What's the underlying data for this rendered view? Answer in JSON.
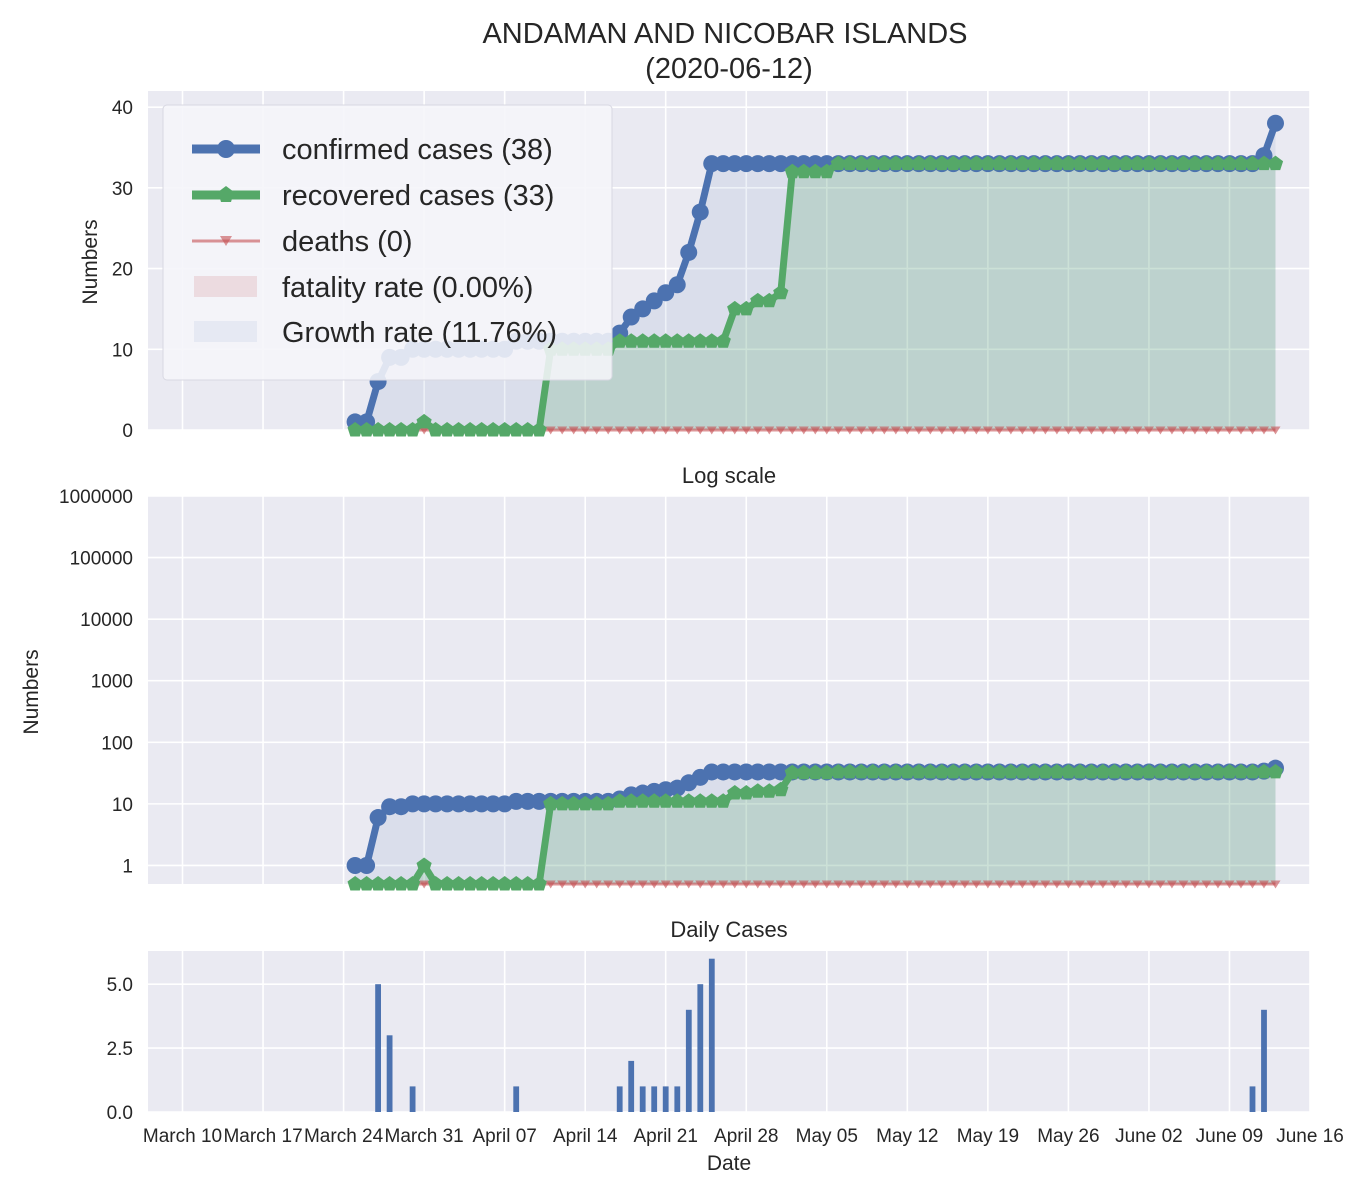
{
  "title_line1": "ANDAMAN AND NICOBAR ISLANDS",
  "title_line2": "(2020-06-12)",
  "x_axis_label": "Date",
  "colors": {
    "confirmed": "#4C72B0",
    "recovered": "#55A868",
    "deaths": "#C44E52",
    "axes_bg": "#EAEAF2",
    "grid": "#FFFFFF"
  },
  "legend": {
    "confirmed": "confirmed cases (38)",
    "recovered": "recovered cases (33)",
    "deaths": "deaths (0)",
    "fatality": "fatality rate (0.00%)",
    "growth": "Growth rate (11.76%)"
  },
  "chart_data": [
    {
      "id": "linear",
      "type": "line",
      "title": "",
      "xlabel": "",
      "ylabel": "Numbers",
      "ylim": [
        0,
        42
      ],
      "yticks": [
        0,
        10,
        20,
        30,
        40
      ],
      "ytick_labels": [
        "0",
        "10",
        "20",
        "30",
        "40"
      ],
      "xlim": [
        "2020-03-07",
        "2020-06-16"
      ],
      "grid": true,
      "legend_position": "upper-left",
      "x_start": "2020-03-25",
      "series": [
        {
          "name": "confirmed cases (38)",
          "values": [
            1,
            1,
            6,
            9,
            9,
            10,
            10,
            10,
            10,
            10,
            10,
            10,
            10,
            10,
            11,
            11,
            11,
            11,
            11,
            11,
            11,
            11,
            11,
            12,
            14,
            15,
            16,
            17,
            18,
            22,
            27,
            33,
            33,
            33,
            33,
            33,
            33,
            33,
            33,
            33,
            33,
            33,
            33,
            33,
            33,
            33,
            33,
            33,
            33,
            33,
            33,
            33,
            33,
            33,
            33,
            33,
            33,
            33,
            33,
            33,
            33,
            33,
            33,
            33,
            33,
            33,
            33,
            33,
            33,
            33,
            33,
            33,
            33,
            33,
            33,
            33,
            33,
            33,
            33,
            34,
            38
          ]
        },
        {
          "name": "recovered cases (33)",
          "values": [
            0,
            0,
            0,
            0,
            0,
            0,
            1,
            0,
            0,
            0,
            0,
            0,
            0,
            0,
            0,
            0,
            0,
            10,
            10,
            10,
            10,
            10,
            10,
            11,
            11,
            11,
            11,
            11,
            11,
            11,
            11,
            11,
            11,
            15,
            15,
            16,
            16,
            17,
            32,
            32,
            32,
            32,
            33,
            33,
            33,
            33,
            33,
            33,
            33,
            33,
            33,
            33,
            33,
            33,
            33,
            33,
            33,
            33,
            33,
            33,
            33,
            33,
            33,
            33,
            33,
            33,
            33,
            33,
            33,
            33,
            33,
            33,
            33,
            33,
            33,
            33,
            33,
            33,
            33,
            33,
            33
          ]
        },
        {
          "name": "deaths (0)",
          "values": [
            0,
            0,
            0,
            0,
            0,
            0,
            0,
            0,
            0,
            0,
            0,
            0,
            0,
            0,
            0,
            0,
            0,
            0,
            0,
            0,
            0,
            0,
            0,
            0,
            0,
            0,
            0,
            0,
            0,
            0,
            0,
            0,
            0,
            0,
            0,
            0,
            0,
            0,
            0,
            0,
            0,
            0,
            0,
            0,
            0,
            0,
            0,
            0,
            0,
            0,
            0,
            0,
            0,
            0,
            0,
            0,
            0,
            0,
            0,
            0,
            0,
            0,
            0,
            0,
            0,
            0,
            0,
            0,
            0,
            0,
            0,
            0,
            0,
            0,
            0,
            0,
            0,
            0,
            0,
            0,
            0
          ]
        }
      ]
    },
    {
      "id": "log",
      "type": "line",
      "title": "Log scale",
      "xlabel": "",
      "ylabel": "Numbers",
      "yscale": "log",
      "ylim": [
        0.5,
        1000000
      ],
      "yticks": [
        1,
        10,
        100,
        1000,
        10000,
        100000,
        1000000
      ],
      "ytick_labels": [
        "1",
        "10",
        "100",
        "1000",
        "10000",
        "100000",
        "1000000"
      ],
      "grid": true,
      "note_values": "same series as linear chart"
    },
    {
      "id": "daily",
      "type": "bar",
      "title": "Daily Cases",
      "xlabel": "Date",
      "ylabel": "",
      "ylim": [
        0,
        6.3
      ],
      "yticks": [
        0,
        2.5,
        5
      ],
      "ytick_labels": [
        "0.0",
        "2.5",
        "5.0"
      ],
      "grid": true,
      "bars": [
        {
          "date": "2020-03-27",
          "value": 5
        },
        {
          "date": "2020-03-28",
          "value": 3
        },
        {
          "date": "2020-03-30",
          "value": 1
        },
        {
          "date": "2020-04-08",
          "value": 1
        },
        {
          "date": "2020-04-17",
          "value": 1
        },
        {
          "date": "2020-04-18",
          "value": 2
        },
        {
          "date": "2020-04-19",
          "value": 1
        },
        {
          "date": "2020-04-20",
          "value": 1
        },
        {
          "date": "2020-04-21",
          "value": 1
        },
        {
          "date": "2020-04-22",
          "value": 1
        },
        {
          "date": "2020-04-23",
          "value": 4
        },
        {
          "date": "2020-04-24",
          "value": 5
        },
        {
          "date": "2020-04-25",
          "value": 6
        },
        {
          "date": "2020-06-11",
          "value": 1
        },
        {
          "date": "2020-06-12",
          "value": 4
        }
      ]
    }
  ],
  "x_ticks": [
    {
      "date": "2020-03-10",
      "label": "March 10"
    },
    {
      "date": "2020-03-17",
      "label": "March 17"
    },
    {
      "date": "2020-03-24",
      "label": "March 24"
    },
    {
      "date": "2020-03-31",
      "label": "March 31"
    },
    {
      "date": "2020-04-07",
      "label": "April 07"
    },
    {
      "date": "2020-04-14",
      "label": "April 14"
    },
    {
      "date": "2020-04-21",
      "label": "April 21"
    },
    {
      "date": "2020-04-28",
      "label": "April 28"
    },
    {
      "date": "2020-05-05",
      "label": "May 05"
    },
    {
      "date": "2020-05-12",
      "label": "May 12"
    },
    {
      "date": "2020-05-19",
      "label": "May 19"
    },
    {
      "date": "2020-05-26",
      "label": "May 26"
    },
    {
      "date": "2020-06-02",
      "label": "June 02"
    },
    {
      "date": "2020-06-09",
      "label": "June 09"
    },
    {
      "date": "2020-06-16",
      "label": "June 16"
    }
  ]
}
